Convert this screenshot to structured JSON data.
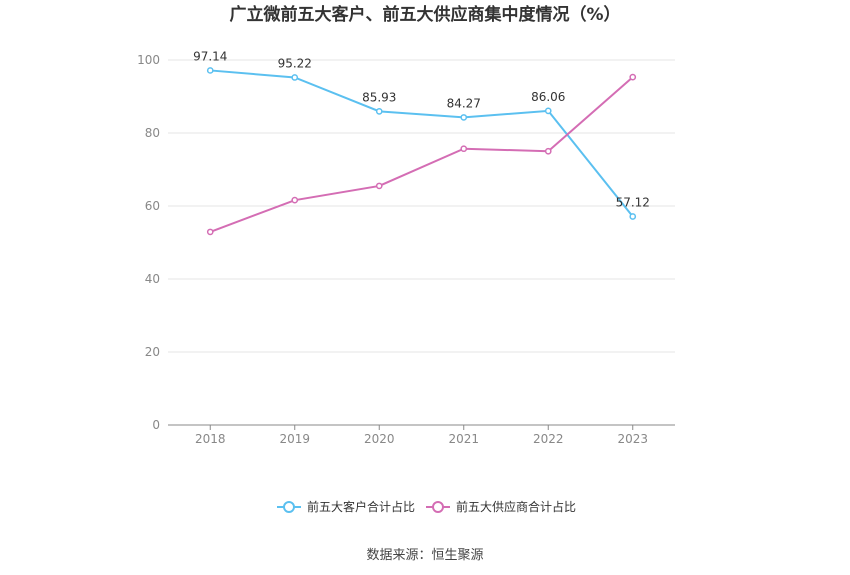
{
  "chart_data": {
    "type": "line",
    "title": "广立微前五大客户、前五大供应商集中度情况（%）",
    "categories": [
      "2018",
      "2019",
      "2020",
      "2021",
      "2022",
      "2023"
    ],
    "ylim": [
      0,
      100
    ],
    "yticks": [
      0,
      20,
      40,
      60,
      80,
      100
    ],
    "grid": true,
    "legend_position": "bottom",
    "series": [
      {
        "name": "前五大客户合计占比",
        "color": "#5bc0f0",
        "values": [
          97.14,
          95.22,
          85.93,
          84.27,
          86.06,
          57.12
        ],
        "labels": [
          "97.14",
          "95.22",
          "85.93",
          "84.27",
          "86.06",
          "57.12"
        ]
      },
      {
        "name": "前五大供应商合计占比",
        "color": "#d46db4",
        "values": [
          52.9,
          61.6,
          65.5,
          75.7,
          75.0,
          95.3
        ]
      }
    ]
  },
  "source": "数据来源：恒生聚源"
}
